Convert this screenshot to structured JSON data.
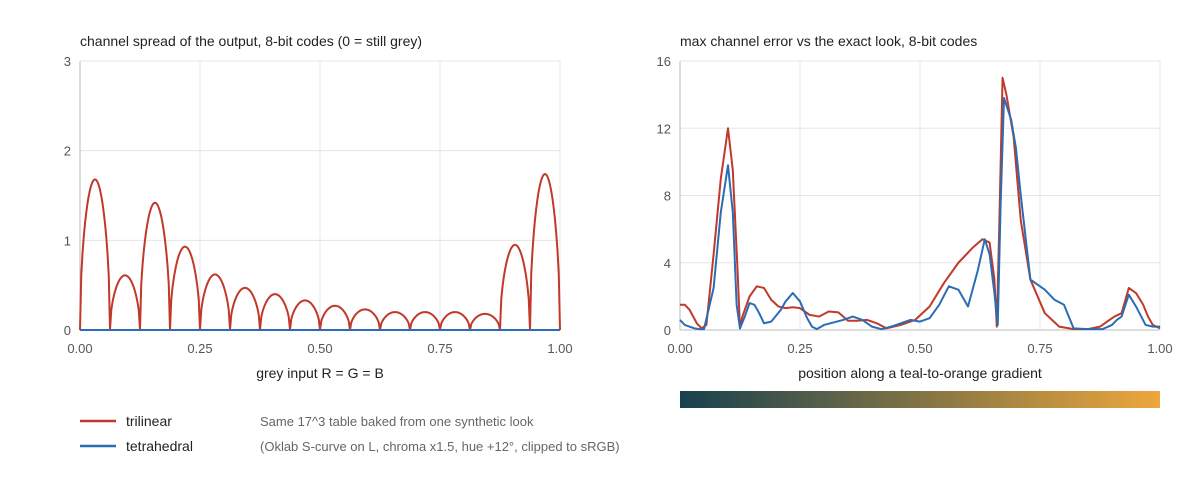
{
  "colors": {
    "trilinear": "#c0392b",
    "tetrahedral": "#2a6db5",
    "grid": "#e5e5e5",
    "axis": "#bbbbbb",
    "gradient_start": "#17404f",
    "gradient_end": "#eda73c"
  },
  "legend": [
    {
      "key": "trilinear",
      "label": "trilinear"
    },
    {
      "key": "tetrahedral",
      "label": "tetrahedral"
    }
  ],
  "note": {
    "line1": "Same 17^3 table baked from one synthetic look",
    "line2": "(Oklab S-curve on L, chroma x1.5, hue +12°, clipped to sRGB)"
  },
  "chart_data": [
    {
      "type": "line",
      "title": "channel spread of the output, 8-bit codes (0 = still grey)",
      "xlabel": "grey input R = G = B",
      "ylabel": "",
      "xlim": [
        0,
        1
      ],
      "ylim": [
        0,
        3
      ],
      "xticks": [
        0,
        0.25,
        0.5,
        0.75,
        1
      ],
      "xtick_labels": [
        "0.00",
        "0.25",
        "0.50",
        "0.75",
        "1.00"
      ],
      "yticks": [
        0,
        1,
        2,
        3
      ],
      "ytick_labels": [
        "0",
        "1",
        "2",
        "3"
      ],
      "grid": true,
      "series": [
        {
          "name": "trilinear",
          "arches": [
            {
              "x0": 0.0,
              "x1": 0.0625,
              "peak": 1.68
            },
            {
              "x0": 0.0625,
              "x1": 0.125,
              "peak": 0.61
            },
            {
              "x0": 0.125,
              "x1": 0.1875,
              "peak": 1.42
            },
            {
              "x0": 0.1875,
              "x1": 0.25,
              "peak": 0.93
            },
            {
              "x0": 0.25,
              "x1": 0.3125,
              "peak": 0.62
            },
            {
              "x0": 0.3125,
              "x1": 0.375,
              "peak": 0.47
            },
            {
              "x0": 0.375,
              "x1": 0.4375,
              "peak": 0.4
            },
            {
              "x0": 0.4375,
              "x1": 0.5,
              "peak": 0.33
            },
            {
              "x0": 0.5,
              "x1": 0.5625,
              "peak": 0.27
            },
            {
              "x0": 0.5625,
              "x1": 0.625,
              "peak": 0.23
            },
            {
              "x0": 0.625,
              "x1": 0.6875,
              "peak": 0.2
            },
            {
              "x0": 0.6875,
              "x1": 0.75,
              "peak": 0.2
            },
            {
              "x0": 0.75,
              "x1": 0.8125,
              "peak": 0.2
            },
            {
              "x0": 0.8125,
              "x1": 0.875,
              "peak": 0.18
            },
            {
              "x0": 0.875,
              "x1": 0.9375,
              "peak": 0.95
            },
            {
              "x0": 0.9375,
              "x1": 1.0,
              "peak": 1.74
            }
          ]
        },
        {
          "name": "tetrahedral",
          "x": [
            0,
            1
          ],
          "y": [
            0,
            0
          ]
        }
      ]
    },
    {
      "type": "line",
      "title": "max channel error vs the exact look, 8-bit codes",
      "xlabel": "position along a teal-to-orange gradient",
      "ylabel": "",
      "xlim": [
        0,
        1
      ],
      "ylim": [
        0,
        16
      ],
      "xticks": [
        0,
        0.25,
        0.5,
        0.75,
        1
      ],
      "xtick_labels": [
        "0.00",
        "0.25",
        "0.50",
        "0.75",
        "1.00"
      ],
      "yticks": [
        0,
        4,
        8,
        12,
        16
      ],
      "ytick_labels": [
        "0",
        "4",
        "8",
        "12",
        "16"
      ],
      "grid": true,
      "series": [
        {
          "name": "trilinear",
          "x": [
            0,
            0.01,
            0.02,
            0.035,
            0.045,
            0.055,
            0.07,
            0.085,
            0.1,
            0.11,
            0.12,
            0.125,
            0.13,
            0.145,
            0.16,
            0.175,
            0.19,
            0.205,
            0.22,
            0.235,
            0.25,
            0.27,
            0.29,
            0.31,
            0.33,
            0.35,
            0.37,
            0.39,
            0.41,
            0.43,
            0.46,
            0.49,
            0.52,
            0.55,
            0.58,
            0.61,
            0.63,
            0.645,
            0.655,
            0.66,
            0.665,
            0.672,
            0.68,
            0.695,
            0.71,
            0.73,
            0.76,
            0.79,
            0.82,
            0.85,
            0.875,
            0.89,
            0.905,
            0.92,
            0.935,
            0.95,
            0.965,
            0.975,
            0.985,
            1.0
          ],
          "y": [
            1.5,
            1.5,
            1.2,
            0.4,
            0.1,
            0.3,
            4.5,
            9.0,
            12.0,
            9.5,
            3.5,
            0.1,
            0.8,
            2.0,
            2.6,
            2.5,
            1.8,
            1.4,
            1.3,
            1.35,
            1.3,
            0.9,
            0.8,
            1.1,
            1.05,
            0.55,
            0.55,
            0.6,
            0.4,
            0.1,
            0.3,
            0.6,
            1.4,
            2.8,
            4.0,
            4.9,
            5.4,
            5.2,
            3.0,
            0.2,
            6.0,
            15.0,
            14.0,
            11.5,
            6.5,
            3.0,
            1.0,
            0.2,
            0.05,
            0.05,
            0.2,
            0.5,
            0.8,
            1.0,
            2.5,
            2.2,
            1.5,
            0.8,
            0.3,
            0.1
          ]
        },
        {
          "name": "tetrahedral",
          "x": [
            0,
            0.01,
            0.02,
            0.03,
            0.04,
            0.05,
            0.07,
            0.085,
            0.1,
            0.11,
            0.118,
            0.125,
            0.135,
            0.145,
            0.155,
            0.165,
            0.175,
            0.19,
            0.21,
            0.22,
            0.235,
            0.25,
            0.265,
            0.275,
            0.285,
            0.3,
            0.32,
            0.34,
            0.36,
            0.38,
            0.4,
            0.42,
            0.44,
            0.46,
            0.48,
            0.5,
            0.52,
            0.54,
            0.56,
            0.58,
            0.6,
            0.62,
            0.635,
            0.645,
            0.655,
            0.662,
            0.668,
            0.675,
            0.69,
            0.7,
            0.71,
            0.73,
            0.76,
            0.78,
            0.8,
            0.82,
            0.85,
            0.88,
            0.9,
            0.91,
            0.92,
            0.935,
            0.95,
            0.97,
            0.985,
            1.0
          ],
          "y": [
            0.6,
            0.3,
            0.2,
            0.1,
            0.05,
            0.05,
            2.5,
            7.0,
            9.8,
            7.0,
            1.5,
            0.1,
            0.8,
            1.6,
            1.5,
            1.0,
            0.4,
            0.5,
            1.2,
            1.7,
            2.2,
            1.7,
            0.7,
            0.2,
            0.05,
            0.3,
            0.45,
            0.6,
            0.8,
            0.6,
            0.2,
            0.05,
            0.2,
            0.4,
            0.6,
            0.5,
            0.7,
            1.5,
            2.6,
            2.4,
            1.4,
            3.5,
            5.4,
            4.5,
            2.2,
            0.3,
            7.5,
            13.8,
            12.5,
            10.8,
            8.0,
            3.0,
            2.4,
            1.8,
            1.5,
            0.1,
            0.05,
            0.05,
            0.3,
            0.6,
            0.8,
            2.1,
            1.4,
            0.3,
            0.2,
            0.2
          ]
        }
      ]
    }
  ]
}
